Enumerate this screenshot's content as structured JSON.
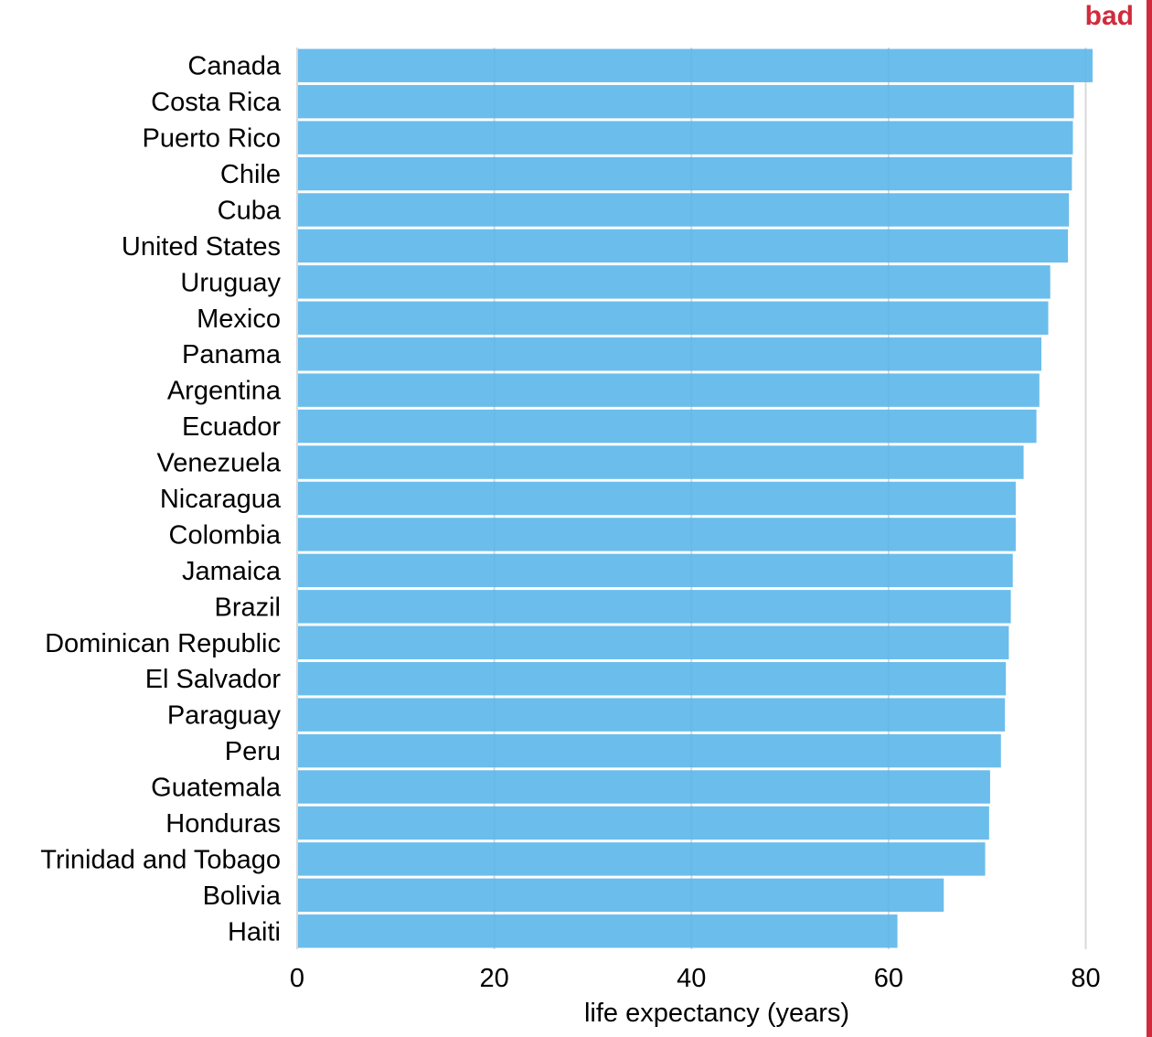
{
  "marker": {
    "label": "bad",
    "color": "#d12a3c"
  },
  "chart_data": {
    "type": "bar",
    "orientation": "horizontal",
    "categories": [
      "Canada",
      "Costa Rica",
      "Puerto Rico",
      "Chile",
      "Cuba",
      "United States",
      "Uruguay",
      "Mexico",
      "Panama",
      "Argentina",
      "Ecuador",
      "Venezuela",
      "Nicaragua",
      "Colombia",
      "Jamaica",
      "Brazil",
      "Dominican Republic",
      "El Salvador",
      "Paraguay",
      "Peru",
      "Guatemala",
      "Honduras",
      "Trinidad and Tobago",
      "Bolivia",
      "Haiti"
    ],
    "values": [
      80.7,
      78.8,
      78.7,
      78.6,
      78.3,
      78.2,
      76.4,
      76.2,
      75.5,
      75.3,
      75.0,
      73.7,
      72.9,
      72.9,
      72.6,
      72.4,
      72.2,
      71.9,
      71.8,
      71.4,
      70.3,
      70.2,
      69.8,
      65.6,
      60.9
    ],
    "xlabel": "life expectancy (years)",
    "ylabel": "",
    "xlim": [
      0,
      84
    ],
    "xticks": [
      0,
      20,
      40,
      60,
      80
    ],
    "grid": "vertical",
    "bar_color": "#56b4e9",
    "grid_color": "#d9d9d9"
  }
}
